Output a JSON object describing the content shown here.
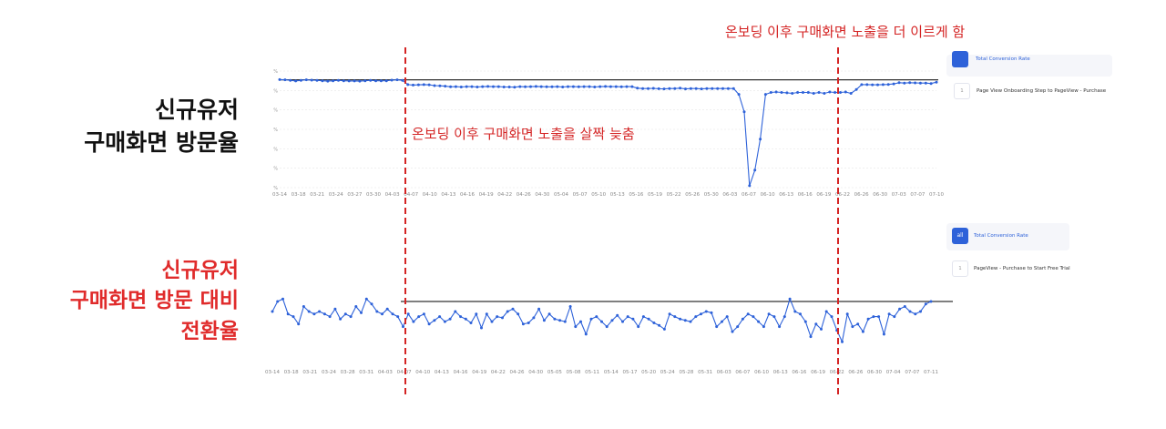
{
  "labels": {
    "top": [
      "신규유저",
      "구매화면 방문율"
    ],
    "bottom": [
      "신규유저",
      "구매화면 방문 대비",
      "전환율"
    ]
  },
  "annotations": {
    "right": "온보딩 이후 구매화면 노출을 더 이르게 함",
    "middle": "온보딩 이후 구매화면 노출을 살짝 늦춤"
  },
  "legends": {
    "top": {
      "badge": "",
      "title": "Total Conversion Rate",
      "item_num": "1",
      "item": "Page View Onboarding Step to PageView - Purchase"
    },
    "bottom": {
      "badge": "all",
      "title": "Total Conversion Rate",
      "item_num": "1",
      "item": "PageView - Purchase to Start Free Trial"
    }
  },
  "colors": {
    "line": "#2e62d9",
    "annotation": "#d42424",
    "baseline": "#333333",
    "grid": "#e6e6e6"
  },
  "chart_data": [
    {
      "type": "line",
      "title": "",
      "xlabel": "",
      "ylabel": "",
      "y_tick_labels": [
        "%",
        "%",
        "%",
        "%",
        "%",
        "%",
        "%"
      ],
      "x_tick_labels": [
        "03-14",
        "03-18",
        "03-21",
        "03-24",
        "03-27",
        "03-30",
        "04-03",
        "04-07",
        "04-10",
        "04-13",
        "04-16",
        "04-19",
        "04-22",
        "04-26",
        "04-30",
        "05-04",
        "05-07",
        "05-10",
        "05-13",
        "05-16",
        "05-19",
        "05-22",
        "05-26",
        "05-30",
        "06-03",
        "06-07",
        "06-10",
        "06-13",
        "06-16",
        "06-19",
        "06-22",
        "06-26",
        "06-30",
        "07-03",
        "07-07",
        "07-10"
      ],
      "ylim": [
        0,
        6
      ],
      "baseline": 5.55,
      "series": [
        {
          "name": "",
          "values": [
            5.56,
            5.55,
            5.52,
            5.49,
            5.52,
            5.55,
            5.53,
            5.52,
            5.5,
            5.48,
            5.5,
            5.52,
            5.5,
            5.49,
            5.49,
            5.48,
            5.5,
            5.52,
            5.5,
            5.5,
            5.5,
            5.53,
            5.55,
            5.52,
            5.3,
            5.28,
            5.29,
            5.3,
            5.29,
            5.25,
            5.24,
            5.22,
            5.19,
            5.2,
            5.18,
            5.2,
            5.2,
            5.18,
            5.2,
            5.21,
            5.2,
            5.2,
            5.18,
            5.18,
            5.17,
            5.2,
            5.19,
            5.2,
            5.21,
            5.2,
            5.19,
            5.19,
            5.2,
            5.18,
            5.2,
            5.2,
            5.19,
            5.2,
            5.2,
            5.18,
            5.2,
            5.21,
            5.2,
            5.2,
            5.19,
            5.2,
            5.2,
            5.12,
            5.1,
            5.1,
            5.11,
            5.09,
            5.08,
            5.1,
            5.1,
            5.12,
            5.08,
            5.1,
            5.1,
            5.08,
            5.1,
            5.1,
            5.1,
            5.1,
            5.1,
            5.1,
            4.8,
            3.9,
            0.1,
            0.9,
            2.5,
            4.8,
            4.9,
            4.92,
            4.9,
            4.88,
            4.85,
            4.9,
            4.9,
            4.9,
            4.85,
            4.9,
            4.85,
            4.92,
            4.9,
            4.9,
            4.92,
            4.85,
            5.05,
            5.3,
            5.3,
            5.29,
            5.29,
            5.3,
            5.31,
            5.34,
            5.4,
            5.38,
            5.4,
            5.39,
            5.38,
            5.38,
            5.36,
            5.43
          ]
        }
      ]
    },
    {
      "type": "line",
      "title": "",
      "xlabel": "",
      "ylabel": "",
      "x_tick_labels": [
        "03-14",
        "03-18",
        "03-21",
        "03-24",
        "03-28",
        "03-31",
        "04-03",
        "04-07",
        "04-10",
        "04-13",
        "04-16",
        "04-19",
        "04-22",
        "04-26",
        "04-30",
        "05-05",
        "05-08",
        "05-11",
        "05-14",
        "05-17",
        "05-20",
        "05-24",
        "05-28",
        "05-31",
        "06-03",
        "06-07",
        "06-10",
        "06-13",
        "06-16",
        "06-19",
        "06-22",
        "06-26",
        "06-30",
        "07-04",
        "07-07",
        "07-11"
      ],
      "ylim": [
        0,
        100
      ],
      "baseline": 50,
      "series": [
        {
          "name": "",
          "values": [
            42,
            50,
            52,
            40,
            38,
            32,
            46,
            42,
            40,
            42,
            40,
            38,
            44,
            36,
            40,
            38,
            46,
            41,
            52,
            48,
            42,
            40,
            44,
            40,
            38,
            30,
            40,
            34,
            38,
            40,
            32,
            35,
            38,
            34,
            36,
            42,
            38,
            36,
            33,
            40,
            29,
            40,
            34,
            38,
            37,
            42,
            44,
            40,
            32,
            33,
            37,
            44,
            35,
            40,
            36,
            35,
            34,
            46,
            30,
            34,
            24,
            36,
            38,
            34,
            30,
            35,
            39,
            34,
            38,
            36,
            30,
            38,
            36,
            33,
            31,
            28,
            40,
            38,
            36,
            35,
            34,
            38,
            40,
            42,
            41,
            30,
            34,
            38,
            26,
            30,
            36,
            40,
            38,
            34,
            30,
            40,
            38,
            30,
            38,
            52,
            42,
            40,
            34,
            22,
            32,
            28,
            42,
            38,
            27,
            18,
            40,
            30,
            32,
            26,
            36,
            38,
            38,
            24,
            40,
            38,
            44,
            46,
            42,
            40,
            42,
            48,
            50
          ]
        }
      ]
    }
  ]
}
